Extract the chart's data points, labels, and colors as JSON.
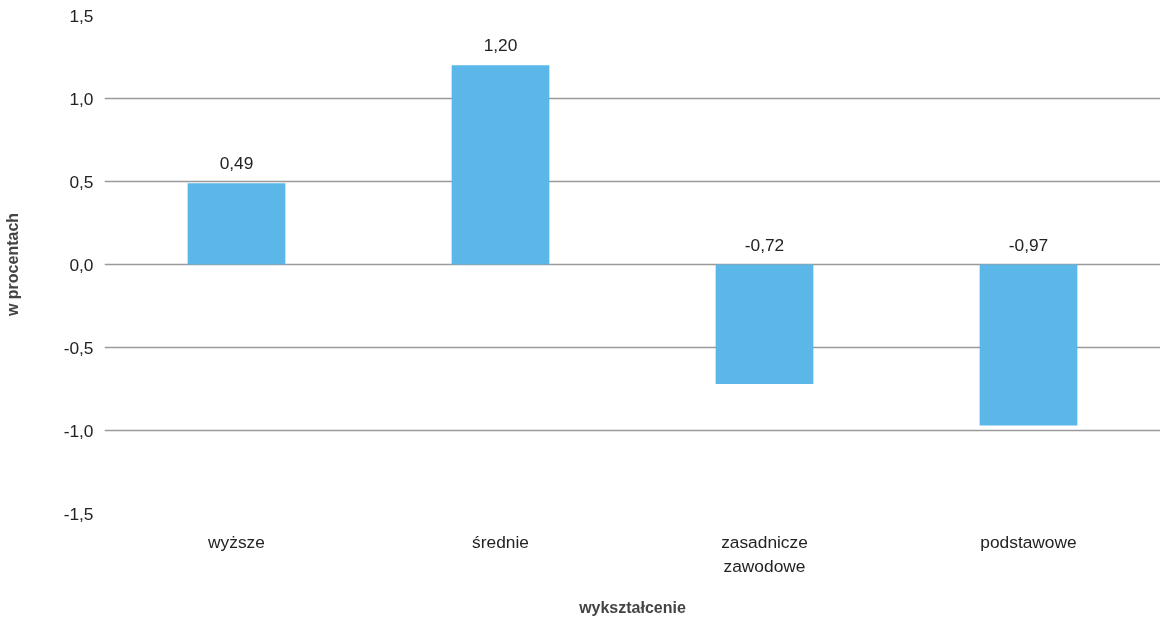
{
  "chart_data": {
    "type": "bar",
    "xlabel": "wykształcenie",
    "ylabel": "w procentach",
    "categories": [
      "wyższe",
      "średnie",
      "zasadnicze\nzawodowe",
      "podstawowe"
    ],
    "values": [
      0.49,
      1.2,
      -0.72,
      -0.97
    ],
    "value_labels": [
      "0,49",
      "1,20",
      "-0,72",
      "-0,97"
    ],
    "color": "#5ab7e7",
    "ylim": [
      -1.5,
      1.5
    ],
    "yticks": [
      {
        "value": -1.5,
        "label": "-1,5"
      },
      {
        "value": -1.0,
        "label": "-1,0"
      },
      {
        "value": -0.5,
        "label": "-0,5"
      },
      {
        "value": 0,
        "label": "0,0"
      },
      {
        "value": 0.5,
        "label": "0,5"
      },
      {
        "value": 1.0,
        "label": "1,0"
      },
      {
        "value": 1.5,
        "label": "1,5"
      }
    ],
    "grid": "y"
  }
}
